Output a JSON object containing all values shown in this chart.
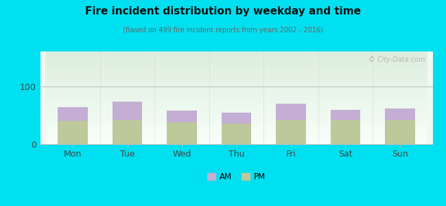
{
  "title": "Fire incident distribution by weekday and time",
  "subtitle": "(Based on 499 fire incident reports from years 2002 - 2016)",
  "categories": [
    "Mon",
    "Tue",
    "Wed",
    "Thu",
    "Fri",
    "Sat",
    "Sun"
  ],
  "pm_values": [
    40,
    42,
    38,
    36,
    42,
    42,
    42
  ],
  "am_values": [
    24,
    32,
    20,
    18,
    28,
    17,
    20
  ],
  "am_color": "#c4aed4",
  "pm_color": "#bdc99a",
  "background_outer": "#00e0f0",
  "ylim": [
    0,
    160
  ],
  "yticks": [
    0,
    100
  ],
  "bar_width": 0.55,
  "watermark": "© City-Data.com"
}
